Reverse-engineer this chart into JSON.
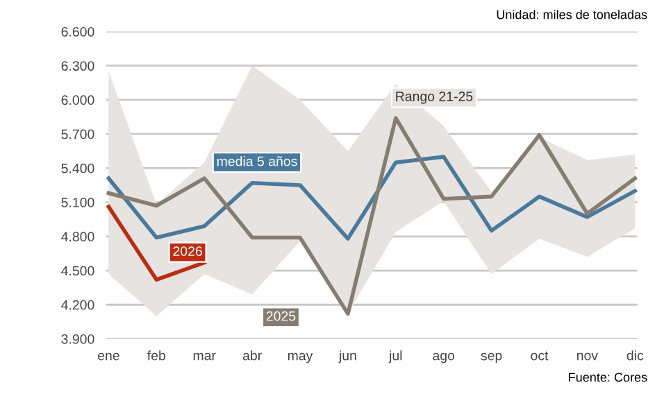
{
  "chart_data": {
    "type": "line",
    "subtitle": "Unidad: miles de toneladas",
    "annotations": [
      "Rango 21-25",
      "Fuente: Cores"
    ],
    "categories": [
      "ene",
      "feb",
      "mar",
      "abr",
      "may",
      "jun",
      "jul",
      "ago",
      "sep",
      "oct",
      "nov",
      "dic"
    ],
    "series": [
      {
        "name": "media 5 años",
        "color": "#4a7a9b",
        "values": [
          5310,
          4790,
          4890,
          5270,
          5250,
          4780,
          5450,
          5500,
          4850,
          5150,
          4970,
          5200
        ],
        "lower": [
          4470,
          4100,
          4470,
          4290,
          4760,
          4120,
          4840,
          5110,
          4470,
          4780,
          4620,
          4870
        ],
        "upper": [
          6250,
          5080,
          5450,
          6300,
          6000,
          5550,
          6140,
          5770,
          5190,
          5670,
          5470,
          5520
        ]
      },
      {
        "name": "2025",
        "color": "#857d71",
        "values": [
          5180,
          5070,
          5310,
          4790,
          4790,
          4120,
          5840,
          5130,
          5150,
          5690,
          5000,
          5310
        ]
      },
      {
        "name": "2026",
        "color": "#b92d13",
        "values": [
          5060,
          4420,
          4570,
          null,
          null,
          null,
          null,
          null,
          null,
          null,
          null,
          null
        ]
      }
    ],
    "ylim": [
      3900,
      6600
    ],
    "yticks": [
      {
        "value": 3900,
        "label": "3.900"
      },
      {
        "value": 4200,
        "label": "4.200"
      },
      {
        "value": 4500,
        "label": "4.500"
      },
      {
        "value": 4800,
        "label": "4.800"
      },
      {
        "value": 5100,
        "label": "5.100"
      },
      {
        "value": 5400,
        "label": "5.400"
      },
      {
        "value": 5700,
        "label": "5.700"
      },
      {
        "value": 6000,
        "label": "6.000"
      },
      {
        "value": 6300,
        "label": "6.300"
      },
      {
        "value": 6600,
        "label": "6.600"
      }
    ],
    "grid": "y",
    "legend": false,
    "line_style": "solid",
    "marker": "none"
  }
}
